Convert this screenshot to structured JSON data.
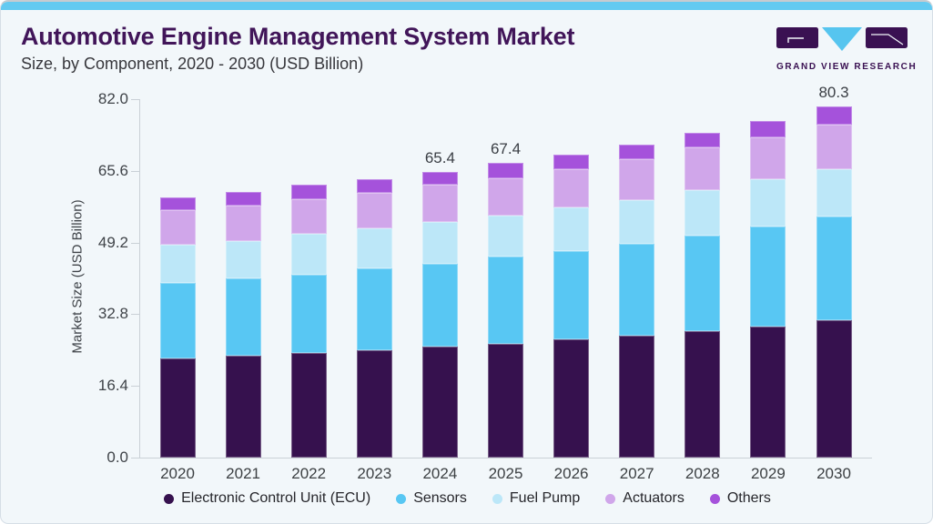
{
  "header": {
    "title": "Automotive Engine Management System Market",
    "subtitle": "Size, by Component, 2020 - 2030 (USD Billion)"
  },
  "logo": {
    "brand": "GRAND VIEW RESEARCH",
    "mark_dark_color": "#3A1152",
    "mark_cyan_color": "#56C5EF"
  },
  "theme": {
    "card_background": "#F2F7FA",
    "top_accent_bar": "#63CAF1",
    "title_color": "#411559",
    "axis_color": "#C9D0D6",
    "axis_text_color": "#3F4348"
  },
  "chart_data": {
    "type": "bar",
    "stacked": true,
    "title": "Automotive Engine Management System Market",
    "subtitle": "Size, by Component, 2020 - 2030 (USD Billion)",
    "ylabel": "Market Size (USD Billion)",
    "xlabel": "",
    "ylim": [
      0,
      82
    ],
    "yticks": [
      "0.0",
      "16.4",
      "32.8",
      "49.2",
      "65.6",
      "82.0"
    ],
    "grid": false,
    "legend_position": "bottom",
    "categories": [
      "2020",
      "2021",
      "2022",
      "2023",
      "2024",
      "2025",
      "2026",
      "2027",
      "2028",
      "2029",
      "2030"
    ],
    "series": [
      {
        "name": "Electronic Control Unit (ECU)",
        "color": "#36114E",
        "values": [
          22.7,
          23.3,
          23.9,
          24.6,
          25.3,
          26.0,
          27.1,
          27.9,
          29.0,
          30.0,
          31.5
        ]
      },
      {
        "name": "Sensors",
        "color": "#58C7F3",
        "values": [
          17.3,
          17.7,
          18.0,
          18.6,
          19.1,
          19.9,
          20.2,
          21.0,
          21.7,
          22.8,
          23.6
        ]
      },
      {
        "name": "Fuel Pump",
        "color": "#BCE7F8",
        "values": [
          8.7,
          8.6,
          9.2,
          9.3,
          9.5,
          9.5,
          9.9,
          9.9,
          10.5,
          10.8,
          10.9
        ]
      },
      {
        "name": "Actuators",
        "color": "#D0A6EA",
        "values": [
          8.0,
          8.0,
          8.1,
          8.1,
          8.5,
          8.6,
          8.8,
          9.4,
          9.8,
          9.7,
          10.1
        ]
      },
      {
        "name": "Others",
        "color": "#A552DB",
        "values": [
          2.8,
          3.2,
          3.2,
          3.0,
          3.0,
          3.4,
          3.3,
          3.5,
          3.3,
          3.8,
          4.2
        ]
      }
    ],
    "total_labels": {
      "2024": "65.4",
      "2025": "67.4",
      "2030": "80.3"
    }
  }
}
